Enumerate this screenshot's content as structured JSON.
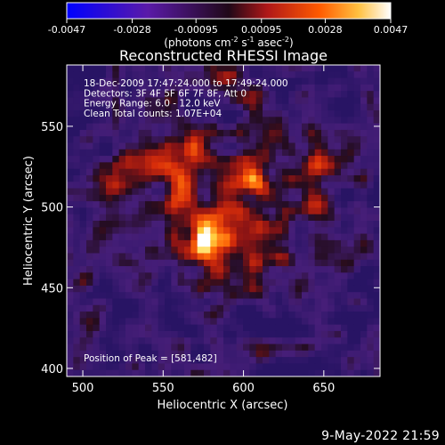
{
  "chart_data": {
    "type": "heatmap",
    "title": "Reconstructed RHESSI Image",
    "xlabel": "Heliocentric X (arcsec)",
    "ylabel": "Heliocentric Y (arcsec)",
    "xlim": [
      490,
      685
    ],
    "ylim": [
      395,
      588
    ],
    "x_ticks": [
      500,
      550,
      600,
      650
    ],
    "y_ticks": [
      400,
      450,
      500,
      550
    ],
    "colorbar": {
      "ticks": [
        "-0.0047",
        "-0.0028",
        "-0.00095",
        "0.00095",
        "0.0028",
        "0.0047"
      ],
      "range": [
        -0.0047,
        0.0047
      ],
      "units_label": "(photons cm",
      "units_sup1": "-2",
      "units_mid": " s",
      "units_sup2": "-1",
      "units_mid2": " asec",
      "units_sup3": "-2",
      "units_end": ")"
    },
    "annotations": [
      "18-Dec-2009 17:47:24.000 to 17:49:24.000",
      "Detectors: 3F 4F 5F 6F 7F 8F, Att 0",
      "Energy Range: 6.0 - 12.0 keV",
      "Clean     Total counts: 1.07E+04"
    ],
    "peak_label": "Position of Peak = [581,482]",
    "peak": [
      581,
      482
    ]
  },
  "footer_date": "9-May-2022 21:59",
  "colors": {
    "background": "#000000",
    "axis": "#ffffff"
  }
}
